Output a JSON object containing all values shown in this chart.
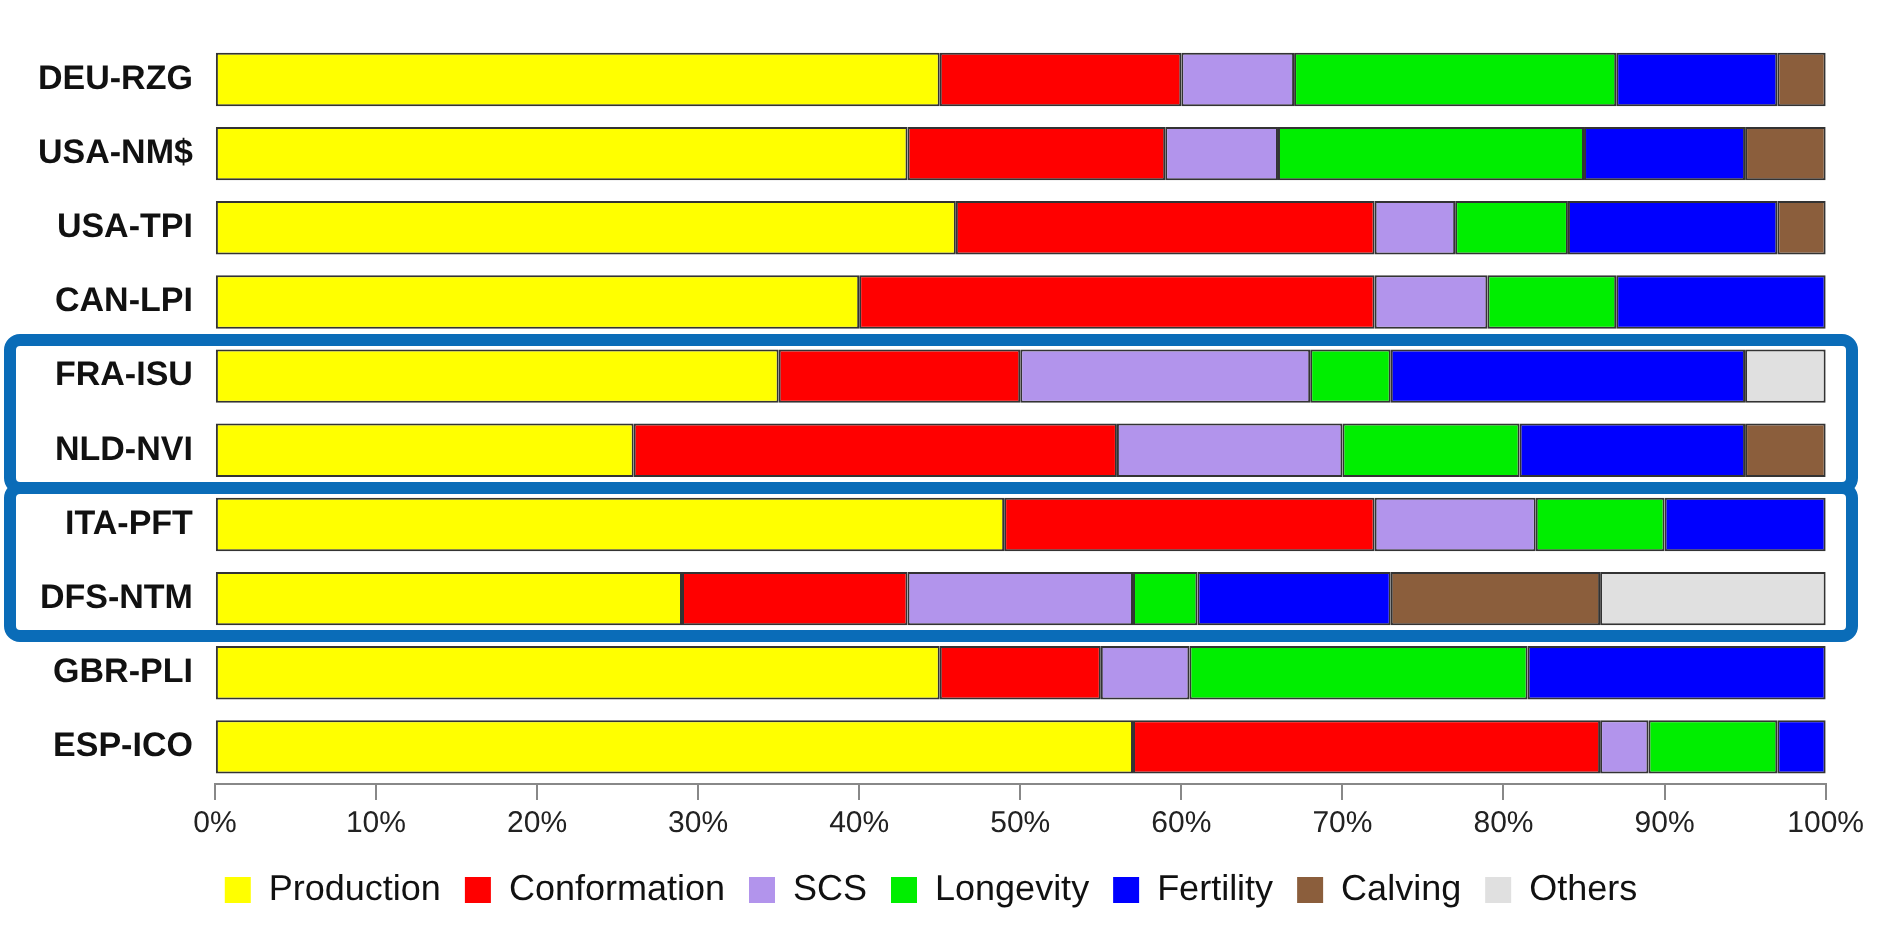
{
  "chart_data": {
    "type": "bar",
    "orientation": "horizontal",
    "stacked": true,
    "categories": [
      "DEU-RZG",
      "USA-NM$",
      "USA-TPI",
      "CAN-LPI",
      "FRA-ISU",
      "NLD-NVI",
      "ITA-PFT",
      "DFS-NTM",
      "GBR-PLI",
      "ESP-ICO"
    ],
    "series": [
      {
        "name": "Production",
        "color": "#ffff00",
        "values": [
          45,
          43,
          46,
          40,
          35,
          26,
          49,
          29,
          45,
          57
        ]
      },
      {
        "name": "Conformation",
        "color": "#ff0000",
        "values": [
          15,
          16,
          26,
          32,
          15,
          30,
          23,
          14,
          10,
          29
        ]
      },
      {
        "name": "SCS",
        "color": "#b294ec",
        "values": [
          7,
          7,
          5,
          7,
          18,
          14,
          10,
          14,
          5.5,
          3
        ]
      },
      {
        "name": "Longevity",
        "color": "#00ee00",
        "values": [
          20,
          19,
          7,
          8,
          5,
          11,
          8,
          4,
          21,
          8
        ]
      },
      {
        "name": "Fertility",
        "color": "#0000ff",
        "values": [
          10,
          10,
          13,
          13,
          22,
          14,
          10,
          12,
          18.5,
          3
        ]
      },
      {
        "name": "Calving",
        "color": "#8b5e3c",
        "values": [
          3,
          5,
          3,
          0,
          0,
          5,
          0,
          13,
          0,
          0
        ]
      },
      {
        "name": "Others",
        "color": "#e0e0e0",
        "values": [
          0,
          0,
          0,
          0,
          5,
          0,
          0,
          14,
          0,
          0
        ]
      }
    ],
    "xlim": [
      0,
      100
    ],
    "xticks": [
      {
        "value": 0,
        "label": "0%"
      },
      {
        "value": 10,
        "label": "10%"
      },
      {
        "value": 20,
        "label": "20%"
      },
      {
        "value": 30,
        "label": "30%"
      },
      {
        "value": 40,
        "label": "40%"
      },
      {
        "value": 50,
        "label": "50%"
      },
      {
        "value": 60,
        "label": "60%"
      },
      {
        "value": 70,
        "label": "70%"
      },
      {
        "value": 80,
        "label": "80%"
      },
      {
        "value": 90,
        "label": "90%"
      },
      {
        "value": 100,
        "label": "100%"
      }
    ],
    "grid": false,
    "legend": "bottom"
  }
}
